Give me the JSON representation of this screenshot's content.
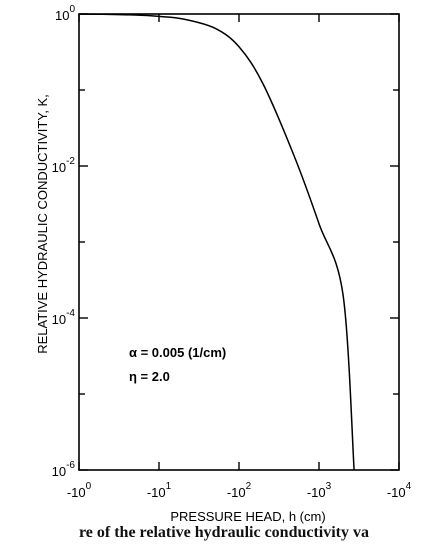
{
  "chart_data": {
    "type": "line",
    "xlabel": "PRESSURE HEAD, h (cm)",
    "ylabel": "RELATIVE HYDRAULIC CONDUCTIVITY, K,",
    "xscale": "log",
    "yscale": "log",
    "xlim": [
      1,
      10000
    ],
    "ylim": [
      1e-06,
      1
    ],
    "x_ticks": [
      {
        "value": 1,
        "base": "-10",
        "exp": "0"
      },
      {
        "value": 10,
        "base": "-10",
        "exp": "1"
      },
      {
        "value": 100,
        "base": "-10",
        "exp": "2"
      },
      {
        "value": 1000,
        "base": "-10",
        "exp": "3"
      },
      {
        "value": 10000,
        "base": "-10",
        "exp": "4"
      }
    ],
    "y_ticks": [
      {
        "value": 1,
        "base": "10",
        "exp": "0"
      },
      {
        "value": 0.01,
        "base": "10",
        "exp": "-2"
      },
      {
        "value": 0.0001,
        "base": "10",
        "exp": "-4"
      },
      {
        "value": 1e-06,
        "base": "10",
        "exp": "-6"
      }
    ],
    "grid": false,
    "annotations": [
      "α = 0.005  (1/cm)",
      "η = 2.0"
    ],
    "series": [
      {
        "x": [
          1,
          2,
          5,
          10,
          20,
          50,
          100,
          200,
          500,
          1000,
          2000,
          2750
        ],
        "y": [
          0.997,
          0.99,
          0.97,
          0.93,
          0.86,
          0.65,
          0.37,
          0.12,
          0.0128,
          0.00174,
          0.0002,
          1e-06
        ]
      }
    ]
  },
  "caption": "re of the relative hydraulic conductivity va"
}
